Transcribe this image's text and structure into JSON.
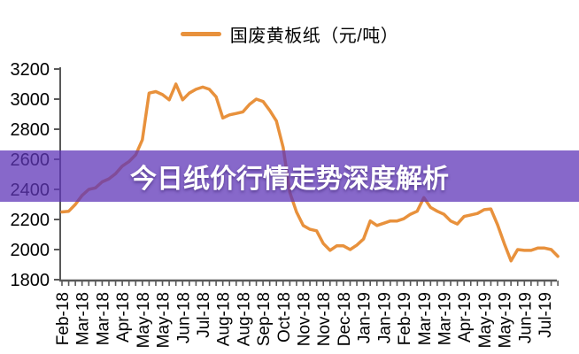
{
  "legend": {
    "label": "国废黄板纸（元/吨）",
    "marker_color": "#E8913C"
  },
  "overlay_banner": {
    "text": "今日纸价行情走势深度解析",
    "color": "#5F35B8",
    "opacity": 0.75,
    "text_color": "#FFFFFF"
  },
  "chart_data": {
    "type": "line",
    "title": "国废黄板纸（元/吨）",
    "series_name": "国废黄板纸",
    "unit": "元/吨",
    "legend_position": "top-center",
    "grid": "off",
    "line_color": "#E8913C",
    "axis_color": "#595959",
    "tick_label_color": "#000000",
    "ylim": [
      1800,
      3200
    ],
    "y_ticks": [
      3200,
      3000,
      2800,
      2600,
      2400,
      2200,
      2000,
      1800
    ],
    "x_label_rotation": -90,
    "points_per_label": 3,
    "x_tick_labels": [
      "Feb-18",
      "Mar-18",
      "Mar-18",
      "Apr-18",
      "May-18",
      "May-18",
      "Jun-18",
      "Jul-18",
      "Aug-18",
      "Aug-18",
      "Sep-18",
      "Oct-18",
      "Nov-18",
      "Nov-18",
      "Dec-18",
      "Jan-19",
      "Jan-19",
      "Feb-19",
      "Mar-19",
      "Mar-19",
      "Apr-19",
      "May-19",
      "May-19",
      "Jun-19",
      "Jul-19"
    ],
    "values": [
      2250,
      2255,
      2300,
      2360,
      2400,
      2410,
      2450,
      2470,
      2505,
      2555,
      2585,
      2630,
      2730,
      3040,
      3050,
      3030,
      2995,
      3100,
      2995,
      3040,
      3065,
      3080,
      3065,
      3015,
      2875,
      2895,
      2905,
      2915,
      2965,
      3000,
      2985,
      2925,
      2855,
      2680,
      2380,
      2250,
      2160,
      2135,
      2125,
      2040,
      1995,
      2025,
      2025,
      2000,
      2030,
      2070,
      2190,
      2160,
      2175,
      2190,
      2190,
      2205,
      2235,
      2255,
      2345,
      2280,
      2255,
      2235,
      2190,
      2170,
      2220,
      2230,
      2240,
      2265,
      2270,
      2165,
      2040,
      1925,
      2000,
      1995,
      1995,
      2010,
      2010,
      2000,
      1955
    ]
  }
}
